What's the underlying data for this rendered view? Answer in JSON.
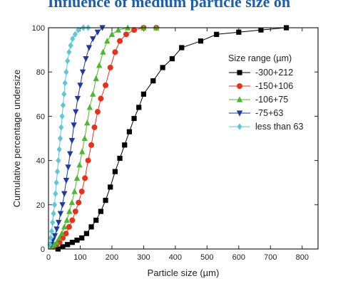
{
  "heading": "Influence of medium particle size on",
  "chart_data": {
    "type": "line",
    "xlabel": "Particle size (µm)",
    "ylabel": "Cumulative percentage undersize",
    "xlim": [
      0,
      850
    ],
    "ylim": [
      0,
      100
    ],
    "xticks": [
      0,
      100,
      200,
      300,
      400,
      500,
      600,
      700,
      800
    ],
    "yticks": [
      0,
      20,
      40,
      60,
      80,
      100
    ],
    "legend_title": "Size range (µm)",
    "legend_position": "right",
    "grid": false,
    "series": [
      {
        "name": "-300+212",
        "color": "#000000",
        "marker": "square",
        "points": [
          [
            30,
            0
          ],
          [
            45,
            1
          ],
          [
            60,
            2
          ],
          [
            75,
            3
          ],
          [
            90,
            4
          ],
          [
            105,
            5
          ],
          [
            120,
            7
          ],
          [
            135,
            10
          ],
          [
            150,
            13
          ],
          [
            165,
            17
          ],
          [
            180,
            22
          ],
          [
            195,
            28
          ],
          [
            210,
            35
          ],
          [
            225,
            41
          ],
          [
            240,
            47
          ],
          [
            255,
            53
          ],
          [
            270,
            59
          ],
          [
            285,
            64
          ],
          [
            300,
            70
          ],
          [
            330,
            76
          ],
          [
            360,
            82
          ],
          [
            390,
            86
          ],
          [
            420,
            91
          ],
          [
            480,
            94
          ],
          [
            530,
            97
          ],
          [
            600,
            98
          ],
          [
            670,
            99
          ],
          [
            750,
            100
          ]
        ]
      },
      {
        "name": "-150+106",
        "color": "#e8301c",
        "marker": "circle",
        "points": [
          [
            15,
            1
          ],
          [
            25,
            2
          ],
          [
            35,
            3
          ],
          [
            45,
            5
          ],
          [
            55,
            7
          ],
          [
            65,
            10
          ],
          [
            75,
            13
          ],
          [
            85,
            17
          ],
          [
            95,
            21
          ],
          [
            105,
            26
          ],
          [
            115,
            32
          ],
          [
            125,
            40
          ],
          [
            135,
            47
          ],
          [
            145,
            55
          ],
          [
            155,
            62
          ],
          [
            165,
            68
          ],
          [
            180,
            74
          ],
          [
            195,
            82
          ],
          [
            210,
            89
          ],
          [
            225,
            94
          ],
          [
            245,
            97
          ],
          [
            270,
            99
          ],
          [
            300,
            100
          ],
          [
            340,
            100
          ]
        ]
      },
      {
        "name": "-106+75",
        "color": "#4bb82e",
        "marker": "triangle-up",
        "points": [
          [
            10,
            1
          ],
          [
            18,
            2
          ],
          [
            26,
            3
          ],
          [
            34,
            5
          ],
          [
            42,
            7
          ],
          [
            50,
            10
          ],
          [
            58,
            13
          ],
          [
            66,
            17
          ],
          [
            74,
            21
          ],
          [
            82,
            26
          ],
          [
            90,
            32
          ],
          [
            98,
            38
          ],
          [
            106,
            44
          ],
          [
            114,
            50
          ],
          [
            122,
            57
          ],
          [
            130,
            64
          ],
          [
            140,
            70
          ],
          [
            150,
            77
          ],
          [
            160,
            83
          ],
          [
            172,
            89
          ],
          [
            185,
            94
          ],
          [
            200,
            97
          ],
          [
            220,
            99
          ],
          [
            250,
            100
          ],
          [
            300,
            100
          ],
          [
            340,
            100
          ]
        ]
      },
      {
        "name": "-75+63",
        "color": "#1f3a9e",
        "marker": "triangle-down",
        "points": [
          [
            8,
            2
          ],
          [
            14,
            4
          ],
          [
            20,
            6
          ],
          [
            26,
            9
          ],
          [
            32,
            12
          ],
          [
            38,
            16
          ],
          [
            44,
            20
          ],
          [
            50,
            25
          ],
          [
            56,
            31
          ],
          [
            62,
            37
          ],
          [
            68,
            43
          ],
          [
            74,
            49
          ],
          [
            80,
            56
          ],
          [
            86,
            62
          ],
          [
            92,
            68
          ],
          [
            100,
            74
          ],
          [
            108,
            80
          ],
          [
            118,
            86
          ],
          [
            128,
            91
          ],
          [
            140,
            95
          ],
          [
            155,
            98
          ],
          [
            170,
            100
          ]
        ]
      },
      {
        "name": "less than 63",
        "color": "#5bc8d8",
        "marker": "diamond",
        "points": [
          [
            4,
            2
          ],
          [
            7,
            5
          ],
          [
            10,
            8
          ],
          [
            13,
            12
          ],
          [
            16,
            16
          ],
          [
            19,
            20
          ],
          [
            22,
            25
          ],
          [
            25,
            30
          ],
          [
            28,
            35
          ],
          [
            31,
            40
          ],
          [
            34,
            45
          ],
          [
            37,
            50
          ],
          [
            40,
            55
          ],
          [
            43,
            60
          ],
          [
            46,
            65
          ],
          [
            49,
            70
          ],
          [
            52,
            75
          ],
          [
            56,
            80
          ],
          [
            60,
            85
          ],
          [
            65,
            89
          ],
          [
            70,
            92
          ],
          [
            76,
            95
          ],
          [
            84,
            97
          ],
          [
            94,
            99
          ],
          [
            110,
            100
          ],
          [
            125,
            100
          ]
        ]
      }
    ]
  }
}
